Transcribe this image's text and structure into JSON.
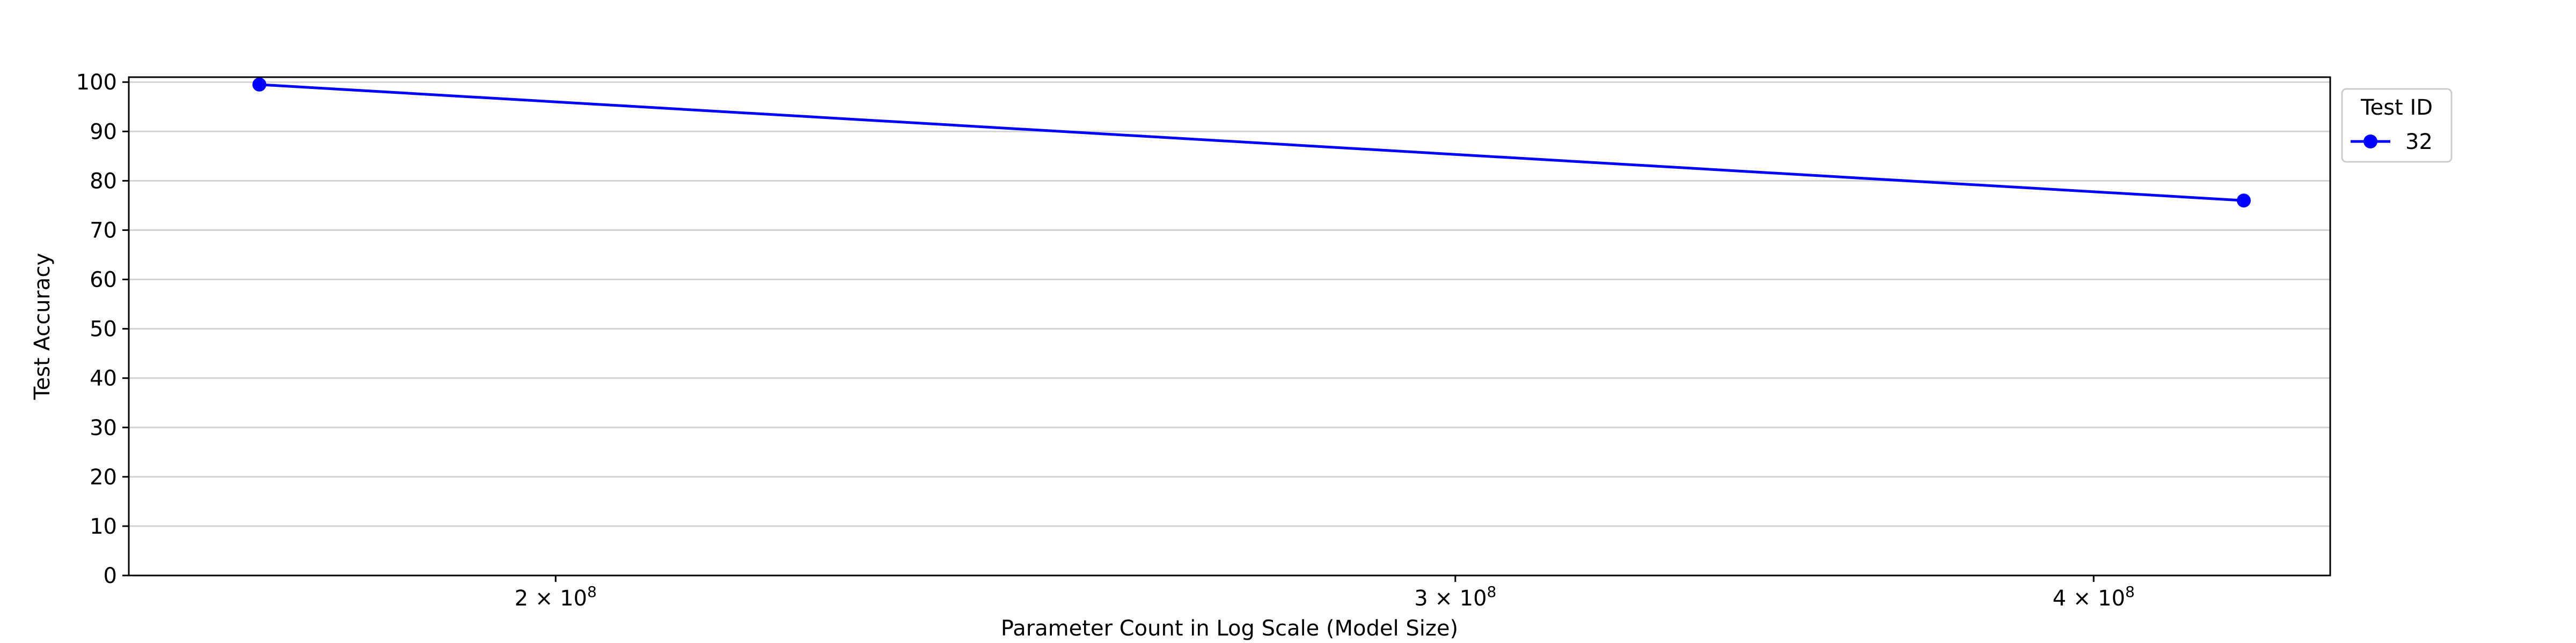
{
  "chart_data": {
    "type": "line",
    "title": "",
    "xlabel": "Parameter Count in Log Scale (Model Size)",
    "ylabel": "Test Accuracy",
    "x_scale": "log",
    "xlim": [
      165000000,
      445000000
    ],
    "ylim": [
      0,
      101
    ],
    "x_ticks": [
      {
        "value": 200000000,
        "mantissa": "2",
        "base": "10",
        "exp": "8"
      },
      {
        "value": 300000000,
        "mantissa": "3",
        "base": "10",
        "exp": "8"
      },
      {
        "value": 400000000,
        "mantissa": "4",
        "base": "10",
        "exp": "8"
      }
    ],
    "y_ticks": [
      0,
      10,
      20,
      30,
      40,
      50,
      60,
      70,
      80,
      90,
      100
    ],
    "grid": "horizontal",
    "legend": {
      "title": "Test ID",
      "placement": "upper right outside"
    },
    "series": [
      {
        "name": "32",
        "color": "#0000ff",
        "marker": "circle",
        "points": [
          {
            "x": 175000000,
            "y": 99.5
          },
          {
            "x": 428000000,
            "y": 76
          }
        ]
      }
    ]
  }
}
